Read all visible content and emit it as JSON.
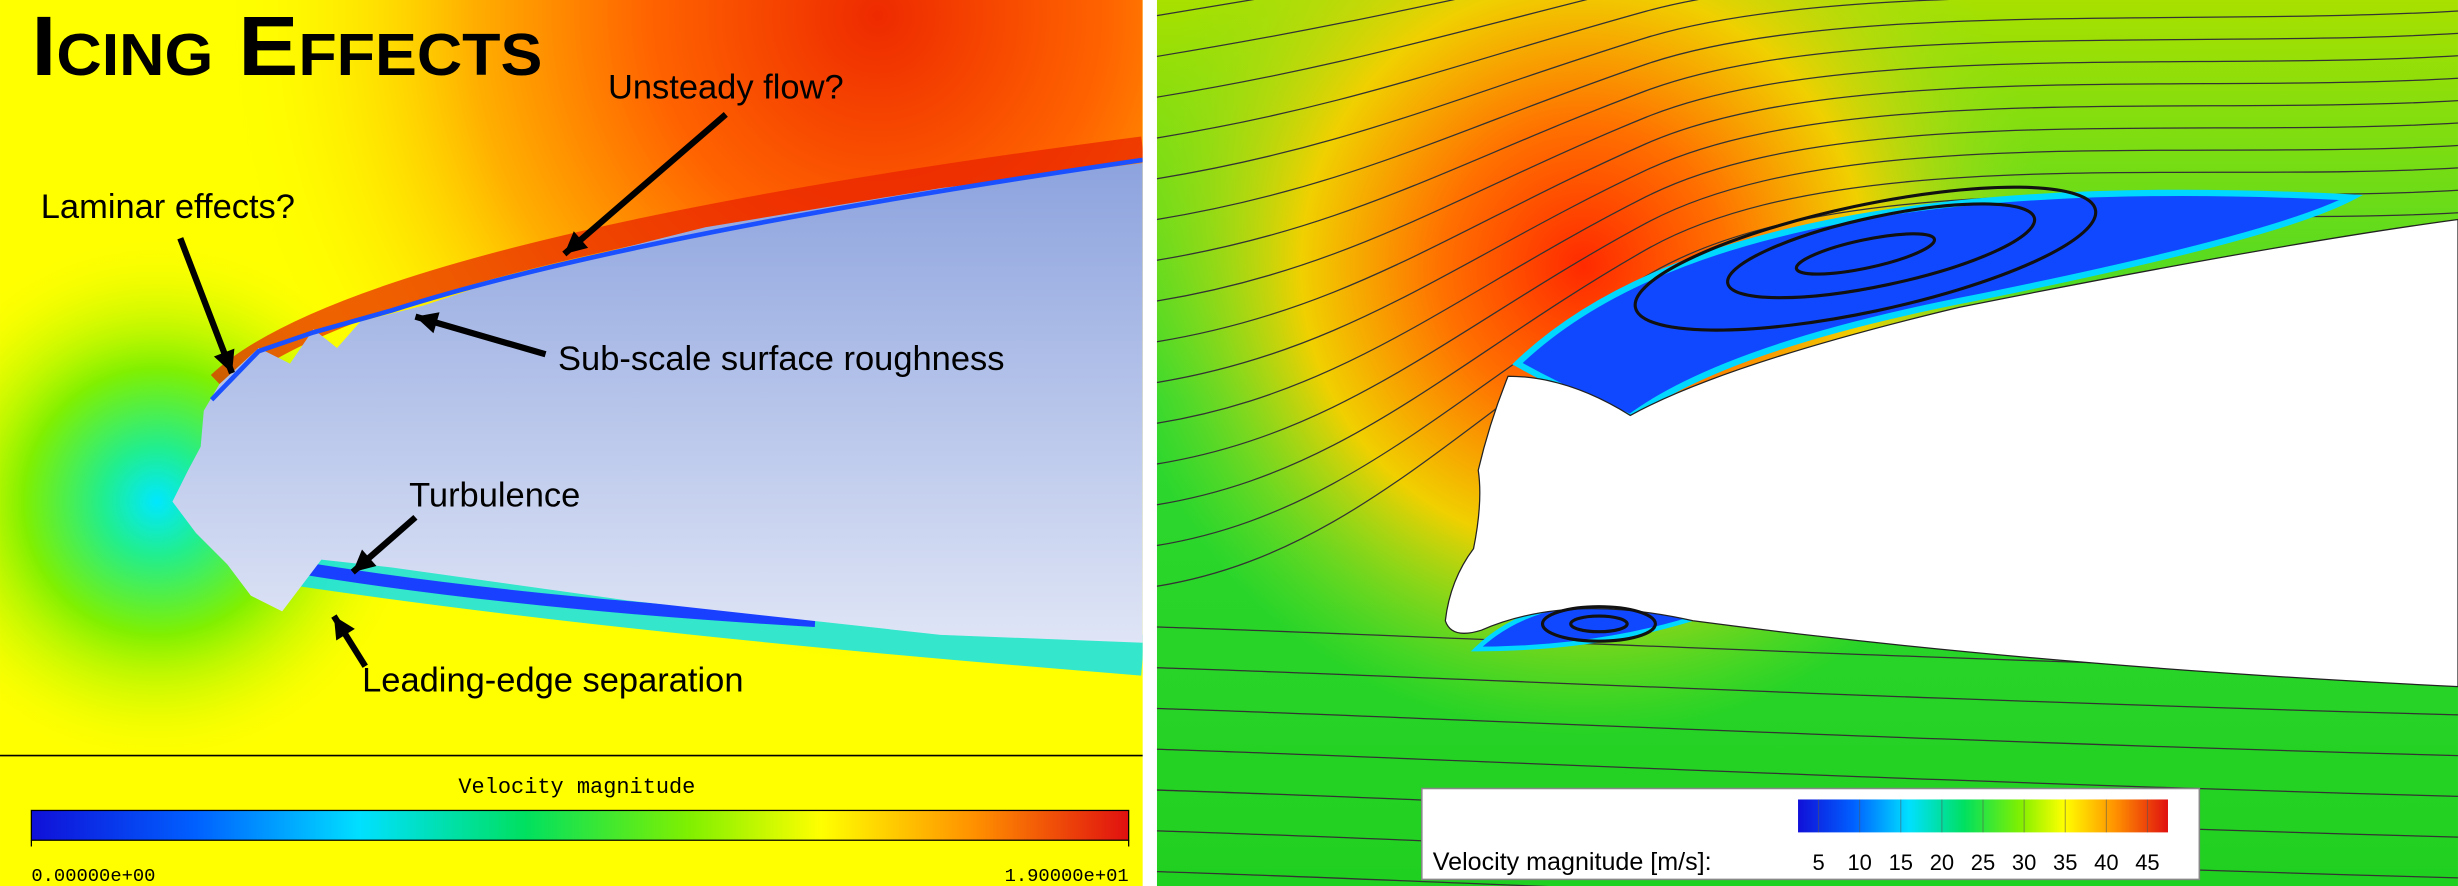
{
  "title": "Icing Effects",
  "left_panel": {
    "annotations": [
      "Unsteady flow?",
      "Laminar effects?",
      "Sub-scale surface roughness",
      "Turbulence",
      "Leading-edge separation"
    ],
    "colorbar": {
      "title": "Velocity magnitude",
      "range": [
        0,
        19
      ],
      "ticks": [
        {
          "value": 0,
          "label": "0.00000e+00"
        },
        {
          "value": 19,
          "label": "1.90000e+01"
        }
      ]
    }
  },
  "right_panel": {
    "colorbar": {
      "title": "Velocity magnitude [m/s]:",
      "range": [
        2.5,
        47.5
      ],
      "ticks": [
        5,
        10,
        15,
        20,
        25,
        30,
        35,
        40,
        45
      ]
    }
  }
}
